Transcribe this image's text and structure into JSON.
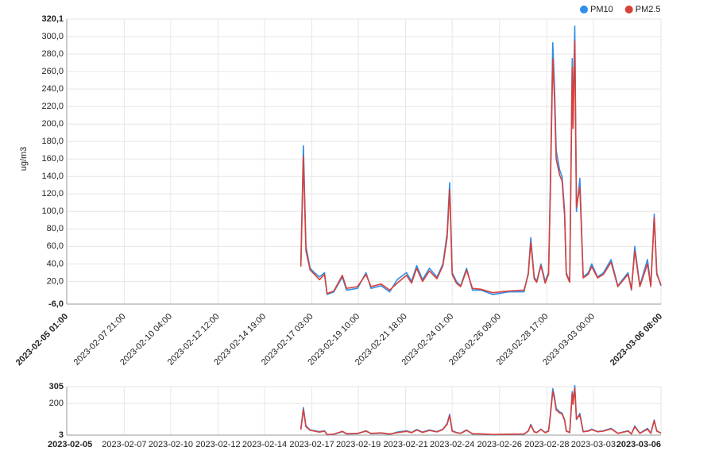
{
  "chart_data": [
    {
      "type": "line",
      "y_label": "ug/m3",
      "xlim": [
        "2023-02-05 01:00",
        "2023-03-06 08:00"
      ],
      "xticks": [
        "2023-02-05 01:00",
        "2023-02-07 21:00",
        "2023-02-10 04:00",
        "2023-02-12 12:00",
        "2023-02-14 19:00",
        "2023-02-17 03:00",
        "2023-02-19 10:00",
        "2023-02-21 18:00",
        "2023-02-24 01:00",
        "2023-02-26 09:00",
        "2023-02-28 17:00",
        "2023-03-03 00:00",
        "2023-03-06 08:00"
      ],
      "ylim": [
        -6,
        320.1
      ],
      "yticks": [
        {
          "value": -6,
          "label": "-6,0"
        },
        {
          "value": 20,
          "label": "20,0"
        },
        {
          "value": 40,
          "label": "40,0"
        },
        {
          "value": 60,
          "label": "60,0"
        },
        {
          "value": 80,
          "label": "80,0"
        },
        {
          "value": 100,
          "label": "100,0"
        },
        {
          "value": 120,
          "label": "120,0"
        },
        {
          "value": 140,
          "label": "140,0"
        },
        {
          "value": 160,
          "label": "160,0"
        },
        {
          "value": 180,
          "label": "180,0"
        },
        {
          "value": 200,
          "label": "200,0"
        },
        {
          "value": 220,
          "label": "220,0"
        },
        {
          "value": 240,
          "label": "240,0"
        },
        {
          "value": 260,
          "label": "260,0"
        },
        {
          "value": 280,
          "label": "280,0"
        },
        {
          "value": 300,
          "label": "300,0"
        },
        {
          "value": 320.1,
          "label": "320,1"
        }
      ],
      "grid": true,
      "legend": "top-right",
      "x": [
        "2023-02-16 14:00",
        "2023-02-16 17:00",
        "2023-02-16 20:00",
        "2023-02-17 01:00",
        "2023-02-17 06:00",
        "2023-02-17 12:00",
        "2023-02-17 18:00",
        "2023-02-17 21:00",
        "2023-02-18 05:00",
        "2023-02-18 15:00",
        "2023-02-18 20:00",
        "2023-02-19 09:00",
        "2023-02-19 19:00",
        "2023-02-20 01:00",
        "2023-02-20 13:00",
        "2023-02-20 23:00",
        "2023-02-21 08:00",
        "2023-02-21 19:00",
        "2023-02-22 01:00",
        "2023-02-22 07:00",
        "2023-02-22 14:00",
        "2023-02-22 22:00",
        "2023-02-23 07:00",
        "2023-02-23 14:00",
        "2023-02-23 19:00",
        "2023-02-23 22:00",
        "2023-02-24 01:00",
        "2023-02-24 06:00",
        "2023-02-24 11:00",
        "2023-02-24 18:00",
        "2023-02-25 01:00",
        "2023-02-25 11:00",
        "2023-02-26 01:00",
        "2023-02-26 20:00",
        "2023-02-27 14:00",
        "2023-02-27 19:00",
        "2023-02-27 22:00",
        "2023-02-28 02:00",
        "2023-02-28 05:00",
        "2023-02-28 10:00",
        "2023-02-28 15:00",
        "2023-02-28 19:00",
        "2023-02-28 21:00",
        "2023-03-01 00:00",
        "2023-03-01 02:00",
        "2023-03-01 04:00",
        "2023-03-01 08:00",
        "2023-03-01 11:00",
        "2023-03-01 14:00",
        "2023-03-01 16:00",
        "2023-03-01 20:00",
        "2023-03-01 23:00",
        "2023-03-02 00:00",
        "2023-03-02 02:00",
        "2023-03-02 04:00",
        "2023-03-02 08:00",
        "2023-03-02 12:00",
        "2023-03-02 18:00",
        "2023-03-02 22:00",
        "2023-03-03 05:00",
        "2023-03-03 12:00",
        "2023-03-03 21:00",
        "2023-03-04 05:00",
        "2023-03-04 17:00",
        "2023-03-04 21:00",
        "2023-03-05 01:00",
        "2023-03-05 07:00",
        "2023-03-05 16:00",
        "2023-03-05 20:00",
        "2023-03-06 00:00",
        "2023-03-06 03:00",
        "2023-03-06 08:00"
      ],
      "series": [
        {
          "name": "PM10",
          "color": "#2f8fe8",
          "values": [
            40,
            175,
            60,
            35,
            30,
            25,
            30,
            5,
            8,
            25,
            10,
            12,
            30,
            12,
            15,
            8,
            22,
            30,
            20,
            38,
            22,
            35,
            25,
            40,
            75,
            133,
            30,
            20,
            15,
            35,
            10,
            10,
            5,
            8,
            8,
            30,
            70,
            25,
            20,
            40,
            20,
            30,
            125,
            293,
            245,
            170,
            148,
            140,
            100,
            30,
            20,
            275,
            200,
            312,
            100,
            138,
            25,
            30,
            40,
            25,
            30,
            45,
            15,
            30,
            10,
            60,
            15,
            45,
            15,
            97,
            30,
            15
          ]
        },
        {
          "name": "PM2.5",
          "color": "#d9403a",
          "values": [
            37,
            163,
            55,
            33,
            28,
            22,
            28,
            6,
            9,
            27,
            12,
            14,
            28,
            14,
            17,
            10,
            18,
            27,
            18,
            35,
            20,
            32,
            23,
            38,
            70,
            125,
            28,
            18,
            14,
            33,
            12,
            11,
            7,
            9,
            10,
            28,
            65,
            23,
            19,
            38,
            18,
            28,
            115,
            275,
            230,
            160,
            142,
            135,
            95,
            28,
            19,
            265,
            195,
            295,
            105,
            128,
            24,
            28,
            37,
            24,
            28,
            42,
            14,
            28,
            11,
            55,
            14,
            40,
            14,
            93,
            28,
            16
          ]
        }
      ]
    },
    {
      "type": "navigator",
      "xlim": [
        "2023-02-05 01:00",
        "2023-03-06 08:00"
      ],
      "xticks": [
        {
          "value": "2023-02-05 01:00",
          "label": "2023-02-05"
        },
        {
          "value": "2023-02-07 21:00",
          "label": "2023-02-07"
        },
        {
          "value": "2023-02-10 04:00",
          "label": "2023-02-10"
        },
        {
          "value": "2023-02-12 12:00",
          "label": "2023-02-12"
        },
        {
          "value": "2023-02-14 19:00",
          "label": "2023-02-14"
        },
        {
          "value": "2023-02-17 03:00",
          "label": "2023-02-17"
        },
        {
          "value": "2023-02-19 10:00",
          "label": "2023-02-19"
        },
        {
          "value": "2023-02-21 18:00",
          "label": "2023-02-21"
        },
        {
          "value": "2023-02-24 01:00",
          "label": "2023-02-24"
        },
        {
          "value": "2023-02-26 09:00",
          "label": "2023-02-26"
        },
        {
          "value": "2023-02-28 17:00",
          "label": "2023-02-28"
        },
        {
          "value": "2023-03-03 00:00",
          "label": "2023-03-03"
        },
        {
          "value": "2023-03-06 08:00",
          "label": "2023-03-06"
        }
      ],
      "ylim": [
        3,
        305
      ],
      "yticks": [
        3,
        200,
        305
      ],
      "grid": true
    }
  ]
}
